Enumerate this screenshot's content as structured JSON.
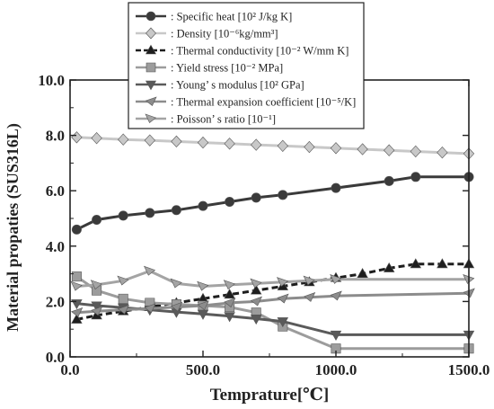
{
  "chart_data": {
    "type": "line",
    "xlabel": "Temprature[℃]",
    "ylabel": "Material propaties (SUS316L)",
    "xlim": [
      0,
      1500
    ],
    "ylim": [
      0,
      10
    ],
    "x_ticks": [
      {
        "value": 0,
        "label": "0.0"
      },
      {
        "value": 500,
        "label": "500.0"
      },
      {
        "value": 1000,
        "label": "1000.0"
      },
      {
        "value": 1500,
        "label": "1500.0"
      }
    ],
    "y_ticks": [
      {
        "value": 0,
        "label": "0.0"
      },
      {
        "value": 2,
        "label": "2.0"
      },
      {
        "value": 4,
        "label": "4.0"
      },
      {
        "value": 6,
        "label": "6.0"
      },
      {
        "value": 8,
        "label": "8.0"
      },
      {
        "value": 10,
        "label": "10.0"
      }
    ],
    "grid": false,
    "legend_position": "top-center",
    "series": [
      {
        "name": ": Specific heat [10² J/kg K]",
        "marker": "circle",
        "color": "#3a3a3a",
        "dash": false,
        "x": [
          25,
          100,
          200,
          300,
          400,
          500,
          600,
          700,
          800,
          1000,
          1200,
          1300,
          1500
        ],
        "y": [
          4.6,
          4.95,
          5.1,
          5.2,
          5.3,
          5.45,
          5.6,
          5.75,
          5.85,
          6.1,
          6.35,
          6.5,
          6.5
        ]
      },
      {
        "name": ": Density [10⁻⁶kg/mm³]",
        "marker": "diamond",
        "color": "#c8c8c8",
        "dash": false,
        "x": [
          25,
          100,
          200,
          300,
          400,
          500,
          600,
          700,
          800,
          900,
          1000,
          1100,
          1200,
          1300,
          1400,
          1500
        ],
        "y": [
          7.93,
          7.9,
          7.85,
          7.82,
          7.78,
          7.74,
          7.7,
          7.66,
          7.62,
          7.58,
          7.54,
          7.5,
          7.46,
          7.42,
          7.38,
          7.34
        ]
      },
      {
        "name": ": Thermal conductivity [10⁻² W/mm K]",
        "marker": "triangle-up",
        "color": "#1e1e1e",
        "dash": true,
        "x": [
          25,
          100,
          200,
          300,
          400,
          500,
          600,
          700,
          800,
          900,
          1000,
          1100,
          1200,
          1300,
          1400,
          1500
        ],
        "y": [
          1.35,
          1.5,
          1.65,
          1.8,
          1.95,
          2.1,
          2.25,
          2.4,
          2.55,
          2.7,
          2.85,
          3.0,
          3.2,
          3.35,
          3.35,
          3.35
        ]
      },
      {
        "name": ": Yield stress [10⁻² MPa]",
        "marker": "square",
        "color": "#9c9c9c",
        "dash": false,
        "x": [
          25,
          100,
          200,
          300,
          400,
          500,
          600,
          700,
          800,
          1000,
          1500
        ],
        "y": [
          2.9,
          2.4,
          2.1,
          1.95,
          1.9,
          1.85,
          1.8,
          1.6,
          1.1,
          0.3,
          0.3
        ]
      },
      {
        "name": ": Young’ s modulus [10² GPa]",
        "marker": "triangle-down",
        "color": "#5a5a5a",
        "dash": false,
        "x": [
          25,
          100,
          200,
          300,
          400,
          500,
          600,
          700,
          800,
          1000,
          1500
        ],
        "y": [
          1.93,
          1.85,
          1.78,
          1.7,
          1.62,
          1.55,
          1.47,
          1.38,
          1.28,
          0.8,
          0.8
        ]
      },
      {
        "name": ": Thermal expansion coefficient [10⁻⁵/K]",
        "marker": "tri-right",
        "color": "#8c8c8c",
        "dash": false,
        "x": [
          25,
          100,
          200,
          300,
          400,
          500,
          600,
          700,
          800,
          900,
          1000,
          1500
        ],
        "y": [
          1.6,
          1.65,
          1.7,
          1.75,
          1.8,
          1.85,
          1.95,
          2.0,
          2.1,
          2.15,
          2.2,
          2.3
        ]
      },
      {
        "name": ": Poisson’ s ratio [10⁻¹]",
        "marker": "tri-left",
        "color": "#a4a4a4",
        "dash": false,
        "x": [
          25,
          100,
          200,
          300,
          400,
          500,
          600,
          700,
          800,
          900,
          1000,
          1500
        ],
        "y": [
          2.55,
          2.6,
          2.75,
          3.1,
          2.65,
          2.55,
          2.6,
          2.65,
          2.7,
          2.75,
          2.8,
          2.8
        ]
      }
    ]
  }
}
